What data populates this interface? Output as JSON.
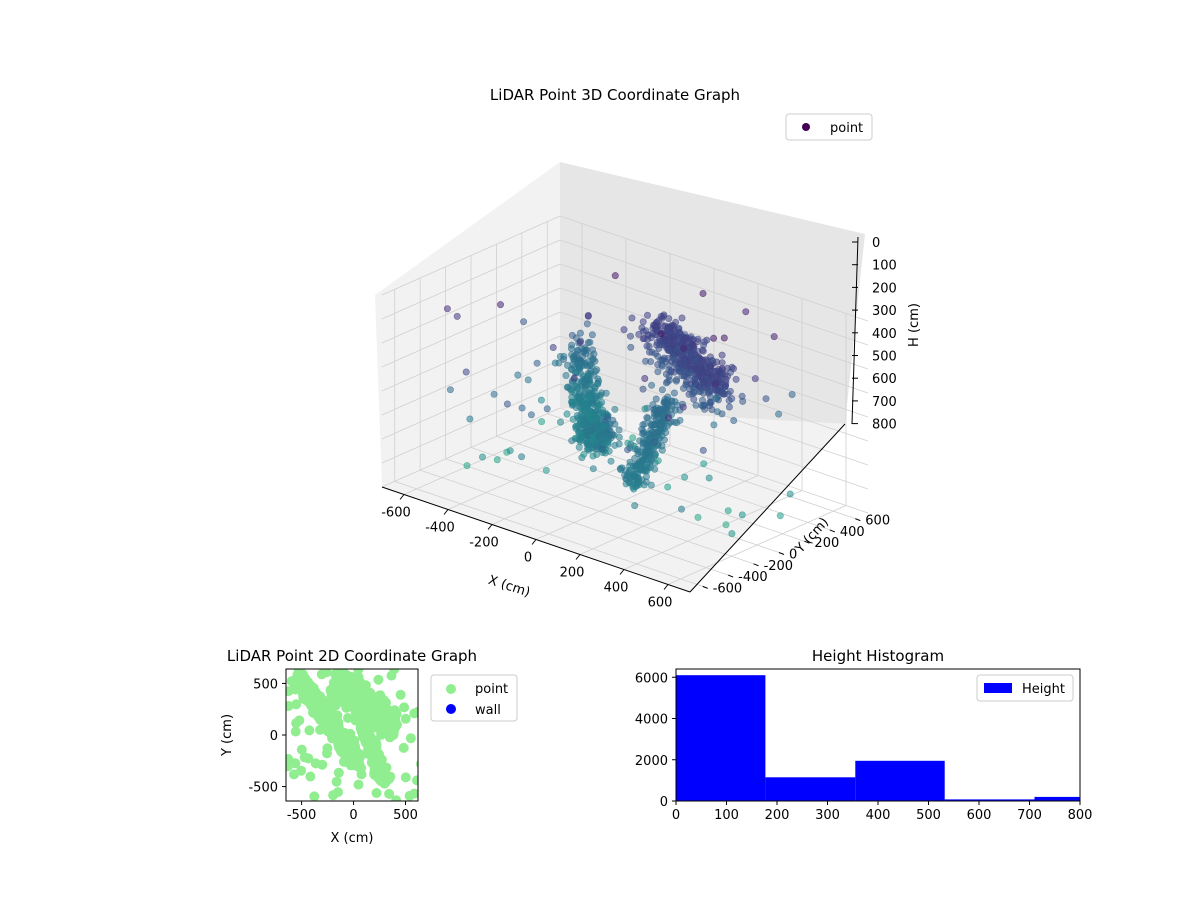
{
  "chart_data": [
    {
      "type": "scatter",
      "projection": "3d",
      "title": "LiDAR Point 3D Coordinate Graph",
      "xlabel": "X (cm)",
      "ylabel": "Y (cm)",
      "zlabel": "H (cm)",
      "xlim": [
        -700,
        700
      ],
      "ylim": [
        -700,
        700
      ],
      "zlim": [
        800,
        0
      ],
      "xticks": [
        -600,
        -400,
        -200,
        0,
        200,
        400,
        600
      ],
      "yticks": [
        -600,
        -400,
        -200,
        0,
        200,
        400,
        600
      ],
      "zticks": [
        0,
        100,
        200,
        300,
        400,
        500,
        600,
        700,
        800
      ],
      "grid": true,
      "colormap": "viridis (colored by height)",
      "legend": {
        "placement": "top-right",
        "entries": [
          "point"
        ]
      },
      "series": [
        {
          "name": "point",
          "description": "dense curved surfaces (shelter/roof) plus scattered outliers",
          "clusters": [
            {
              "role": "inner-curved-wall",
              "x_range": [
                -520,
                80
              ],
              "y_range": [
                -300,
                560
              ],
              "h_range": [
                420,
                650
              ]
            },
            {
              "role": "upper-arch",
              "x_range": [
                -150,
                420
              ],
              "y_range": [
                -200,
                550
              ],
              "h_range": [
                120,
                350
              ]
            },
            {
              "role": "lower-ridge",
              "x_range": [
                0,
                300
              ],
              "y_range": [
                -460,
                300
              ],
              "h_range": [
                400,
                560
              ]
            },
            {
              "role": "outliers",
              "x_range": [
                -650,
                650
              ],
              "y_range": [
                -650,
                650
              ],
              "h_range": [
                0,
                800
              ]
            }
          ]
        }
      ]
    },
    {
      "type": "scatter",
      "title": "LiDAR Point 2D Coordinate Graph",
      "xlabel": "X (cm)",
      "ylabel": "Y (cm)",
      "xlim": [
        -650,
        620
      ],
      "ylim": [
        -640,
        640
      ],
      "xticks": [
        -500,
        0,
        500
      ],
      "yticks": [
        -500,
        0,
        500
      ],
      "grid": false,
      "legend": {
        "placement": "outside-right",
        "entries": [
          "point",
          "wall"
        ]
      },
      "series": [
        {
          "name": "point",
          "color": "#90ee90",
          "description": "dense blob centered near (0, -50)"
        },
        {
          "name": "wall",
          "color": "#0000ff",
          "points": []
        }
      ]
    },
    {
      "type": "bar",
      "subtype": "histogram",
      "title": "Height Histogram",
      "xlim": [
        0,
        800
      ],
      "ylim": [
        0,
        6400
      ],
      "xticks": [
        0,
        100,
        200,
        300,
        400,
        500,
        600,
        700,
        800
      ],
      "yticks": [
        0,
        2000,
        4000,
        6000
      ],
      "grid": false,
      "color": "#0000ff",
      "legend": {
        "placement": "top-right",
        "entries": [
          "Height"
        ]
      },
      "bin_edges": [
        0,
        177,
        355,
        532,
        710,
        887
      ],
      "values": [
        6100,
        1150,
        1950,
        80,
        200
      ],
      "series": [
        {
          "name": "Height"
        }
      ]
    }
  ]
}
